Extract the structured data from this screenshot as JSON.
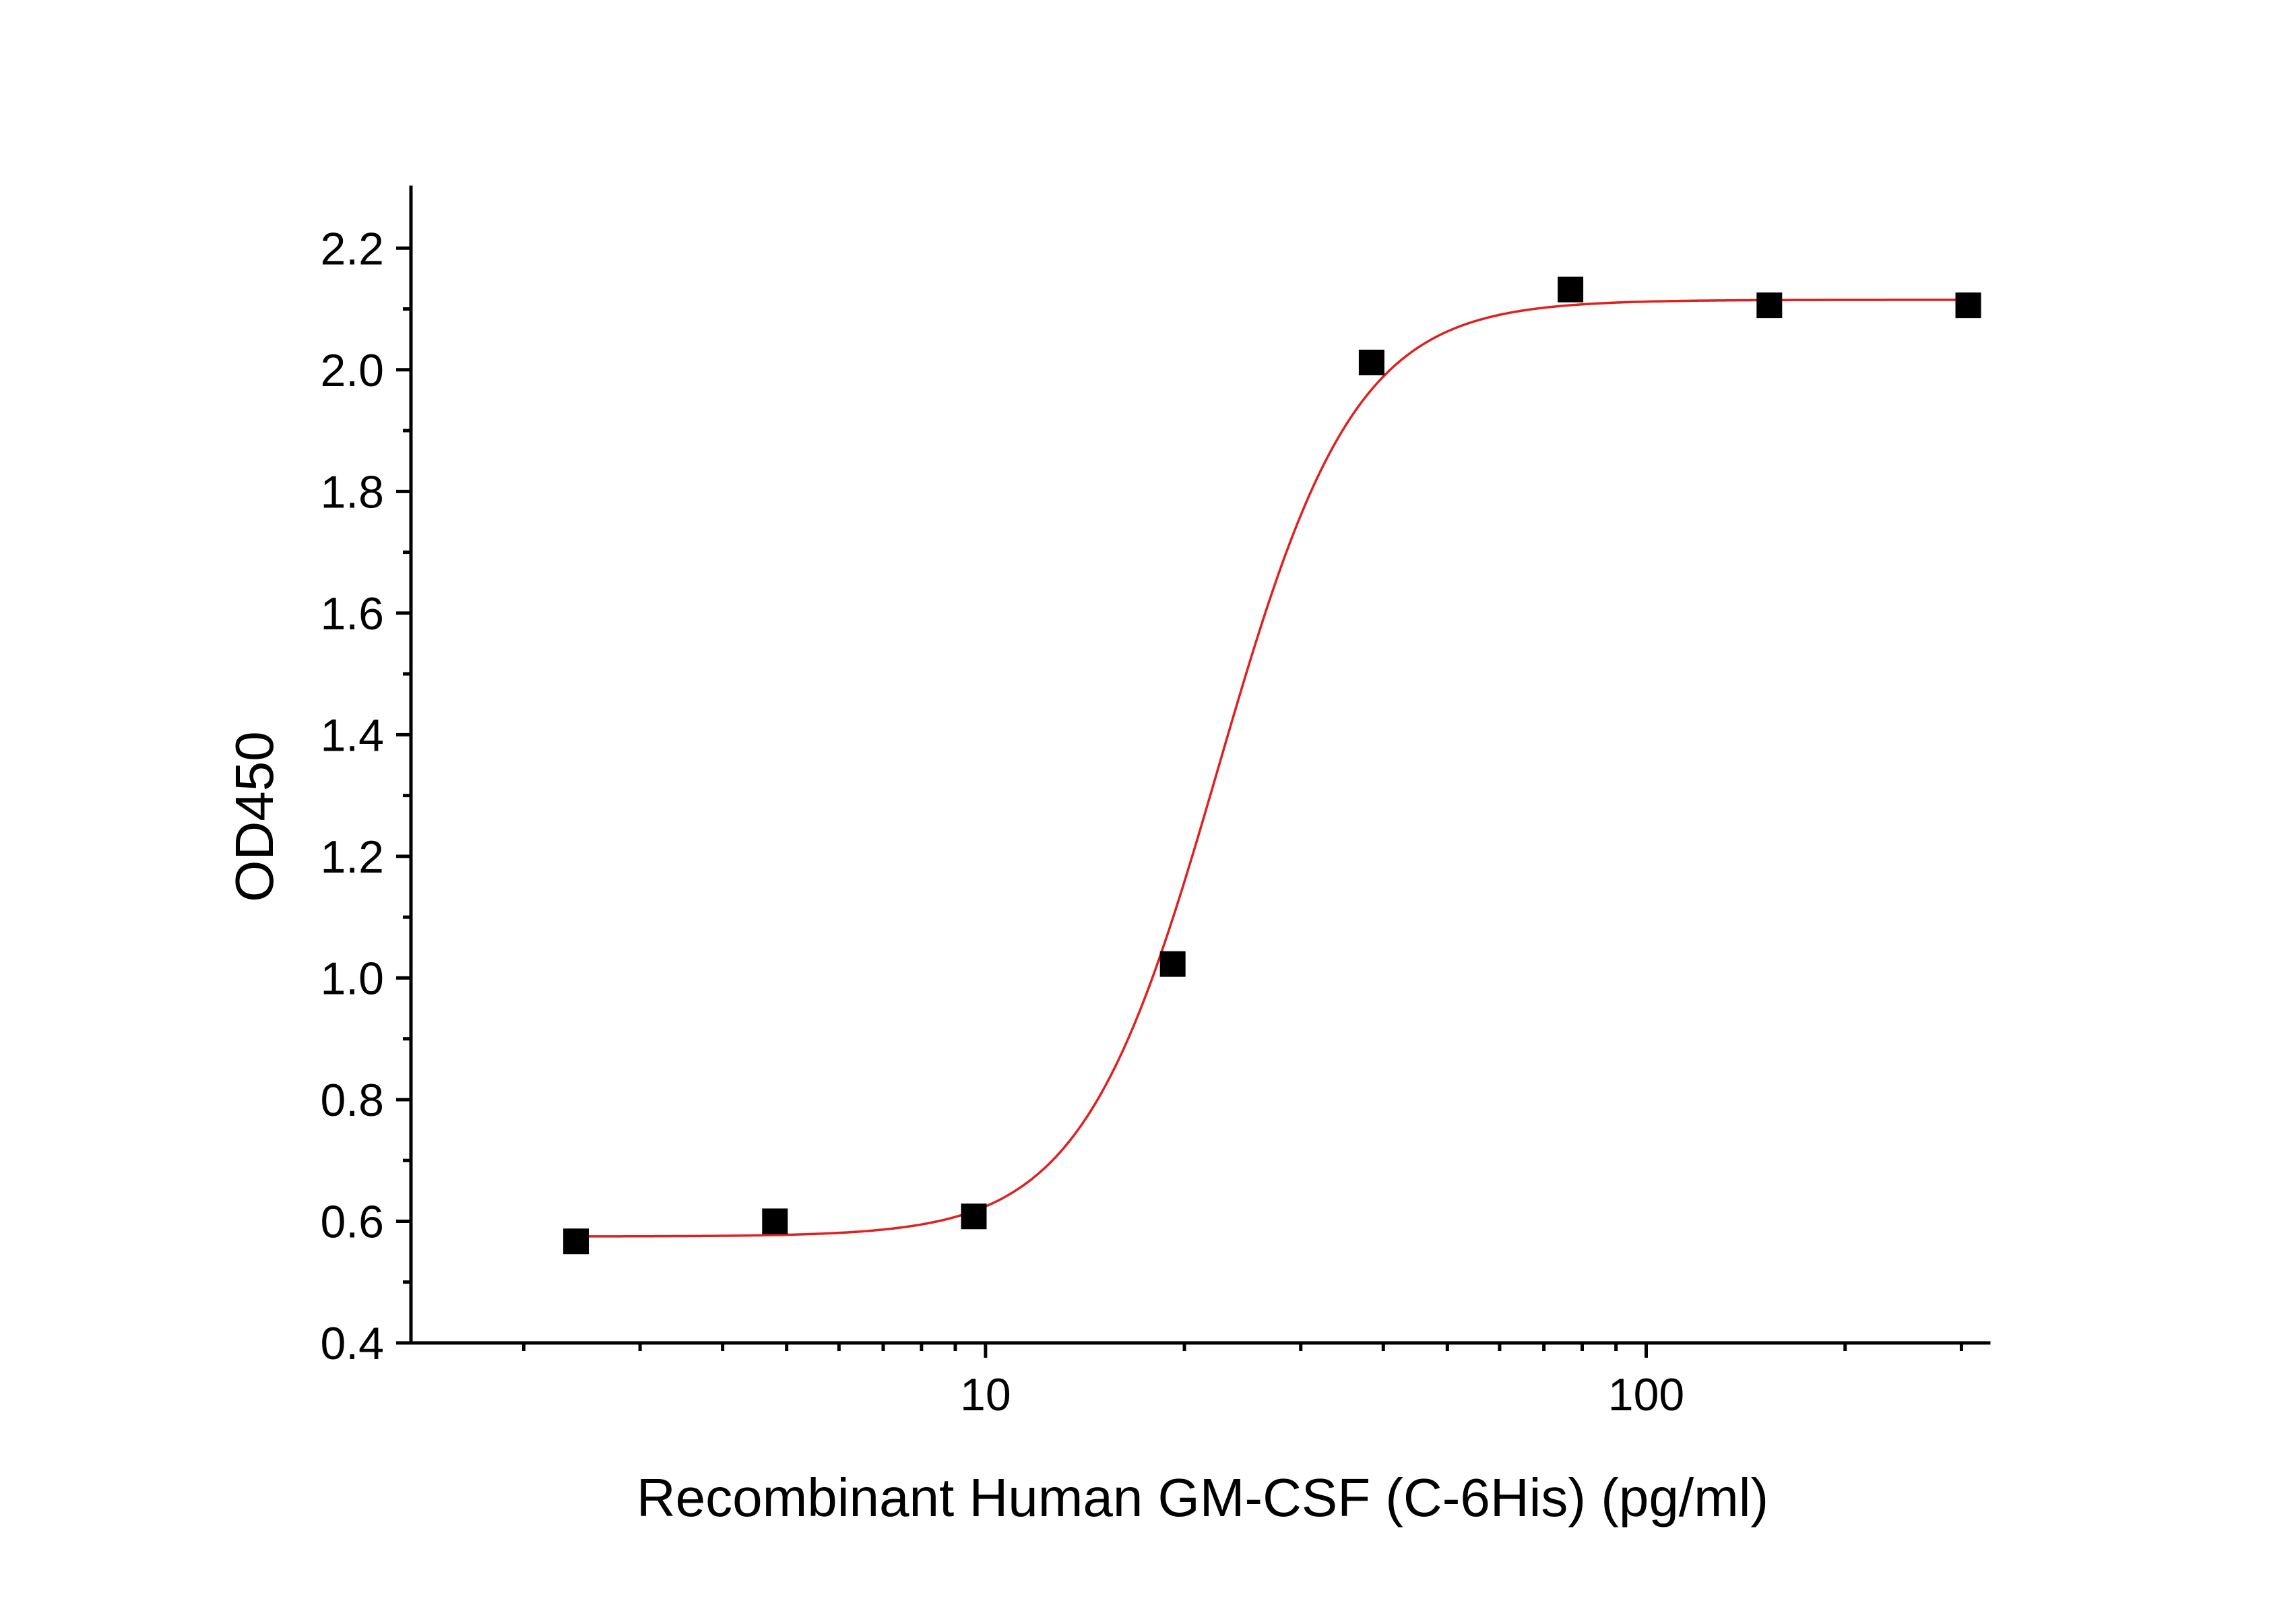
{
  "chart_data": {
    "type": "scatter",
    "title": "",
    "xlabel": "Recombinant Human GM-CSF (C-6His) (pg/ml)",
    "ylabel": "OD450",
    "x_scale": "log",
    "xlim": [
      1.35,
      330
    ],
    "ylim": [
      0.4,
      2.3
    ],
    "x_ticks": [
      10,
      100
    ],
    "x_tick_labels": [
      "10",
      "100"
    ],
    "y_ticks": [
      0.4,
      0.6,
      0.8,
      1.0,
      1.2,
      1.4,
      1.6,
      1.8,
      2.0,
      2.2
    ],
    "y_tick_labels": [
      "0.4",
      "0.6",
      "0.8",
      "1.0",
      "1.2",
      "1.4",
      "1.6",
      "1.8",
      "2.0",
      "2.2"
    ],
    "grid": false,
    "legend": "none",
    "series": [
      {
        "marker": "square",
        "color": "#000000",
        "x": [
          2.4,
          4.8,
          9.6,
          19.2,
          38.4,
          76.8,
          153.6,
          307.2
        ],
        "y": [
          0.567,
          0.6,
          0.608,
          1.023,
          2.012,
          2.132,
          2.106,
          2.106
        ]
      }
    ],
    "fit_curve": {
      "model": "4PL",
      "color": "#e02020",
      "bottom": 0.575,
      "top": 2.115,
      "ec50": 22.5,
      "hill": 4.2,
      "x_range": [
        2.4,
        307.2
      ]
    }
  }
}
